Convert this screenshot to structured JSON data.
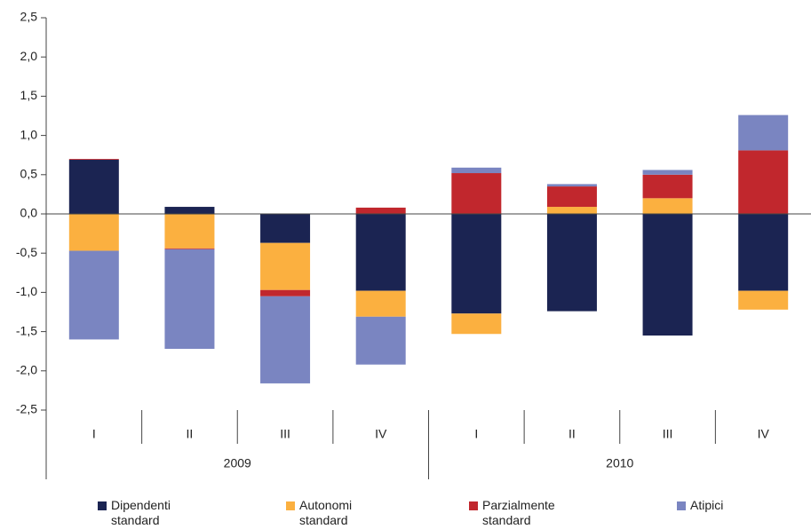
{
  "chart_data": {
    "type": "stacked_bar",
    "categories": [
      "I",
      "II",
      "III",
      "IV",
      "I",
      "II",
      "III",
      "IV"
    ],
    "groups": [
      "2009",
      "2010"
    ],
    "series": [
      {
        "name": "Dipendenti standard",
        "color": "#1b2452",
        "values": [
          0.69,
          0.09,
          -0.37,
          -0.98,
          -1.27,
          -1.24,
          -1.55,
          -0.98
        ]
      },
      {
        "name": "Autonomi standard",
        "color": "#fbb040",
        "values": [
          -0.47,
          -0.44,
          -0.6,
          -0.33,
          -0.26,
          0.09,
          0.2,
          -0.24
        ]
      },
      {
        "name": "Parzialmente standard",
        "color": "#c1272d",
        "values": [
          0.01,
          -0.01,
          -0.08,
          0.08,
          0.52,
          0.26,
          0.3,
          0.81
        ]
      },
      {
        "name": "Atipici",
        "color": "#7a85c1",
        "values": [
          -1.13,
          -1.27,
          -1.11,
          -0.61,
          0.07,
          0.03,
          0.06,
          0.45
        ]
      }
    ],
    "ylim": [
      -2.5,
      2.5
    ],
    "yticks": [
      {
        "value": -2.5,
        "label": "-2,5"
      },
      {
        "value": -2,
        "label": "-2,0"
      },
      {
        "value": -1.5,
        "label": "-1,5"
      },
      {
        "value": -1,
        "label": "-1,0"
      },
      {
        "value": -0.5,
        "label": "-0,5"
      },
      {
        "value": 0,
        "label": "0,0"
      },
      {
        "value": 0.5,
        "label": "0,5"
      },
      {
        "value": 1,
        "label": "1,0"
      },
      {
        "value": 1.5,
        "label": "1,5"
      },
      {
        "value": 2,
        "label": "2,0"
      },
      {
        "value": 2.5,
        "label": "2,5"
      }
    ],
    "legend": "bottom"
  }
}
